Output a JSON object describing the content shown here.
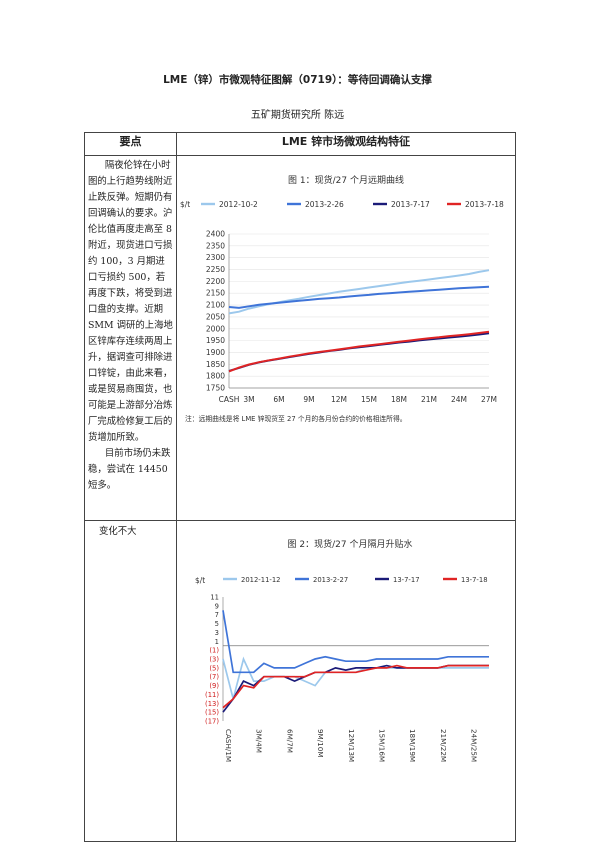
{
  "header": {
    "title": "LME（锌）市微观特征图解（0719）：等待回调确认支撑",
    "author": "五矿期货研究所    陈远"
  },
  "table": {
    "col1_header": "要点",
    "col2_header": "LME 锌市场微观结构特征",
    "summary_p1": "隔夜伦锌在小时图的上行趋势线附近止跌反弹。短期仍有回调确认的要求。沪伦比值再度走高至 8 附近，现货进口亏损约 100，3 月期进口亏损约 500，若再度下跌，将受到进口盘的支撑。近期 SMM 调研的上海地区锌库存连续两周上升，据调查可排除进口锌锭，由此来看，或是贸易商囤货，也可能是上游部分冶炼厂完成检修复工后的货增加所致。",
    "summary_p2": "目前市场仍未跌稳，尝试在 14450 短多。",
    "row2_text": "变化不大"
  },
  "chart_data": [
    {
      "type": "line",
      "title": "图 1：现货/27 个月远期曲线",
      "unit_label": "$/t",
      "categories": [
        "CASH",
        "2M",
        "3M",
        "4M",
        "5M",
        "6M",
        "7M",
        "8M",
        "9M",
        "10M",
        "11M",
        "12M",
        "13M",
        "14M",
        "15M",
        "16M",
        "17M",
        "18M",
        "19M",
        "20M",
        "21M",
        "22M",
        "23M",
        "24M",
        "25M",
        "26M",
        "27M"
      ],
      "tick_labels": [
        "CASH",
        "3M",
        "6M",
        "9M",
        "12M",
        "15M",
        "18M",
        "21M",
        "24M",
        "27M"
      ],
      "ylim": [
        1750,
        2400
      ],
      "yticks": [
        1750,
        1800,
        1850,
        1900,
        1950,
        2000,
        2050,
        2100,
        2150,
        2200,
        2250,
        2300,
        2350,
        2400
      ],
      "note": "注：远期曲线是将 LME 锌现货至 27 个月的各月份合约的价格相连所得。",
      "series": [
        {
          "name": "2012-10-2",
          "color": "#9cc8ec",
          "values": [
            2065,
            2072,
            2085,
            2095,
            2104,
            2112,
            2120,
            2127,
            2135,
            2142,
            2149,
            2156,
            2162,
            2168,
            2174,
            2180,
            2186,
            2192,
            2198,
            2203,
            2208,
            2214,
            2219,
            2225,
            2231,
            2240,
            2247
          ]
        },
        {
          "name": "2013-2-26",
          "color": "#3f74d8",
          "values": [
            2092,
            2088,
            2095,
            2101,
            2106,
            2110,
            2114,
            2118,
            2122,
            2126,
            2129,
            2132,
            2136,
            2140,
            2143,
            2147,
            2150,
            2153,
            2156,
            2159,
            2162,
            2165,
            2168,
            2171,
            2173,
            2175,
            2177
          ]
        },
        {
          "name": "2013-7-17",
          "color": "#1b1b78",
          "values": [
            1822,
            1835,
            1848,
            1858,
            1866,
            1873,
            1880,
            1887,
            1894,
            1900,
            1906,
            1911,
            1917,
            1922,
            1927,
            1932,
            1937,
            1942,
            1946,
            1951,
            1955,
            1959,
            1963,
            1967,
            1971,
            1976,
            1981
          ]
        },
        {
          "name": "2013-7-18",
          "color": "#e02424",
          "values": [
            1820,
            1836,
            1849,
            1859,
            1867,
            1874,
            1882,
            1889,
            1896,
            1902,
            1907,
            1913,
            1919,
            1925,
            1930,
            1935,
            1940,
            1945,
            1950,
            1955,
            1960,
            1964,
            1969,
            1973,
            1977,
            1982,
            1987
          ]
        }
      ]
    },
    {
      "type": "line",
      "title": "图 2：现货/27 个月隔月升贴水",
      "unit_label": "$/t",
      "categories": [
        "CASH/1M",
        "1M/2M",
        "2M/3M",
        "3M/4M",
        "4M/5M",
        "5M/6M",
        "6M/7M",
        "7M/8M",
        "8M/9M",
        "9M/10M",
        "10M/11M",
        "11M/12M",
        "12M/13M",
        "13M/14M",
        "14M/15M",
        "15M/16M",
        "16M/17M",
        "17M/18M",
        "18M/19M",
        "19M/20M",
        "20M/21M",
        "21M/22M",
        "22M/23M",
        "23M/24M",
        "24M/25M",
        "25M/26M",
        "26M/27M"
      ],
      "tick_labels": [
        "CASH/1M",
        "3M/4M",
        "6M/7M",
        "9M/10M",
        "12M/13M",
        "15M/16M",
        "18M/19M",
        "21M/22M",
        "24M/25M"
      ],
      "ylim": [
        -17,
        11
      ],
      "yticks": [
        11,
        9,
        7,
        5,
        3,
        1,
        -1,
        -3,
        -5,
        -7,
        -9,
        -11,
        -13,
        -15,
        -17
      ],
      "ytick_labels": [
        "11",
        "9",
        "7",
        "5",
        "3",
        "1",
        "(1)",
        "(3)",
        "(5)",
        "(7)",
        "(9)",
        "(11)",
        "(13)",
        "(15)",
        "(17)"
      ],
      "series": [
        {
          "name": "2012-11-12",
          "color": "#9cc8ec",
          "values": [
            -3,
            -12,
            -3,
            -8,
            -8,
            -7,
            -7,
            -7,
            -8,
            -9,
            -6,
            -6,
            -6,
            -6,
            -5,
            -5,
            -5,
            -5,
            -5,
            -5,
            -5,
            -5,
            -5,
            -5,
            -5,
            -5,
            -5
          ]
        },
        {
          "name": "2013-2-27",
          "color": "#3f74d8",
          "values": [
            8,
            -6,
            -6,
            -6,
            -4,
            -5,
            -5,
            -5,
            -4,
            -3,
            -2.5,
            -3,
            -3.5,
            -3.5,
            -3.5,
            -3,
            -3,
            -3,
            -3,
            -3,
            -3,
            -3,
            -2.5,
            -2.5,
            -2.5,
            -2.5,
            -2.5
          ]
        },
        {
          "name": "13-7-17",
          "color": "#1b1b78",
          "values": [
            -15,
            -12,
            -8,
            -9,
            -7,
            -7,
            -7,
            -8,
            -7,
            -6,
            -6,
            -5,
            -5.5,
            -5,
            -5,
            -5,
            -4.5,
            -5,
            -5,
            -5,
            -5,
            -5,
            -4.5,
            -4.5,
            -4.5,
            -4.5,
            -4.5
          ]
        },
        {
          "name": "13-7-18",
          "color": "#e02424",
          "values": [
            -14,
            -12,
            -9,
            -9.5,
            -7,
            -7,
            -7,
            -7,
            -7,
            -6,
            -6,
            -6,
            -6,
            -6,
            -5.5,
            -5,
            -5,
            -4.5,
            -5,
            -5,
            -5,
            -5,
            -4.5,
            -4.5,
            -4.5,
            -4.5,
            -4.5
          ]
        }
      ]
    }
  ]
}
